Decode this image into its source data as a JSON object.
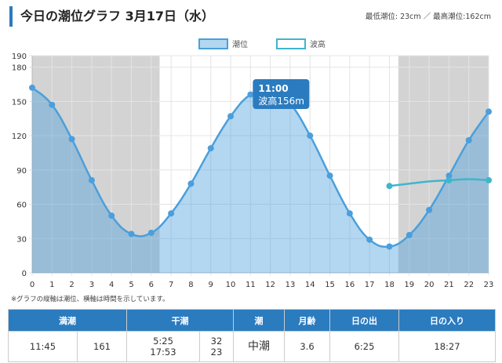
{
  "header": {
    "title": "今日の潮位グラフ 3月17日（水）",
    "minmax": "最低潮位: 23cm ／ 最高潮位:162cm"
  },
  "note": "※グラフの縦軸は潮位、横軸は時間を示しています。",
  "chart_data": {
    "type": "line",
    "legend": [
      {
        "name": "潮位",
        "color": "#4a9fdc"
      },
      {
        "name": "波高",
        "color": "#40b5cc"
      }
    ],
    "legend_position": "top-center",
    "x": [
      0,
      1,
      2,
      3,
      4,
      5,
      6,
      7,
      8,
      9,
      10,
      11,
      12,
      13,
      14,
      15,
      16,
      17,
      18,
      19,
      20,
      21,
      22,
      23
    ],
    "series": [
      {
        "name": "潮位",
        "values": [
          162,
          147,
          117,
          81,
          50,
          34,
          35,
          52,
          78,
          109,
          137,
          156,
          160,
          148,
          120,
          85,
          52,
          29,
          23,
          33,
          55,
          85,
          116,
          141
        ]
      },
      {
        "name": "波高",
        "values": [
          null,
          null,
          null,
          null,
          null,
          null,
          null,
          null,
          null,
          null,
          null,
          null,
          null,
          null,
          null,
          null,
          null,
          null,
          76,
          78,
          80,
          81,
          82,
          81
        ]
      }
    ],
    "ylim": [
      0,
      190
    ],
    "yticks": [
      0,
      30,
      60,
      90,
      120,
      150,
      180,
      190
    ],
    "night_ranges": [
      [
        0,
        6.42
      ],
      [
        18.45,
        23
      ]
    ],
    "tooltip": {
      "time": "11:00",
      "text": "波高156m"
    }
  },
  "table": {
    "headers": [
      "満潮",
      "干潮",
      "潮",
      "月齢",
      "日の出",
      "日の入り"
    ],
    "high_time": "11:45",
    "high_level": "161",
    "low_time1": "5:25",
    "low_time2": "17:53",
    "low_level1": "32",
    "low_level2": "23",
    "tide": "中潮",
    "moon_age": "3.6",
    "sunrise": "6:25",
    "sunset": "18:27"
  }
}
